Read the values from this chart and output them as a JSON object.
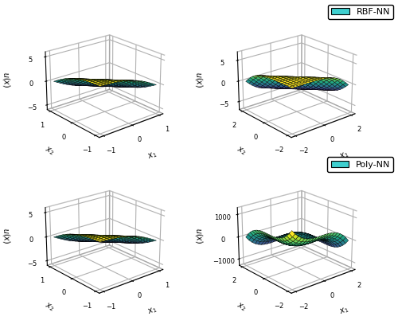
{
  "legend_rbf": "RBF-NN",
  "legend_poly": "Poly-NN",
  "legend_color": "#3ECFCF",
  "small_range": [
    -1.0,
    1.0
  ],
  "large_range": [
    -2.0,
    2.0
  ],
  "n_points": 20,
  "zlim_small": [
    -6,
    6
  ],
  "zlim_large_rbf": [
    -7,
    7
  ],
  "zlim_large_poly": [
    -1300,
    1300
  ],
  "zticks_small": [
    -5,
    0,
    5
  ],
  "zticks_large_rbf": [
    -5,
    0,
    5
  ],
  "zticks_large_poly": [
    -1000,
    0,
    1000
  ],
  "elev": 22,
  "azim_small": -130,
  "azim_large": -130
}
